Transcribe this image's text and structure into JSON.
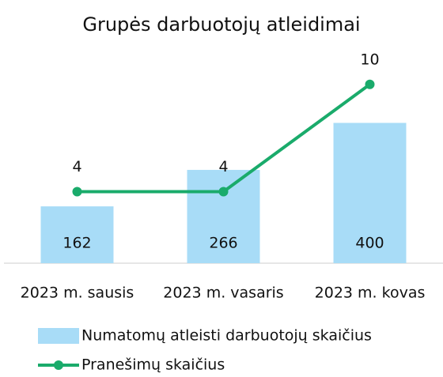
{
  "chart_data": {
    "type": "bar_line",
    "title": "Grupės darbuotojų atleidimai",
    "categories": [
      "2023 m. sausis",
      "2023 m. vasaris",
      "2023 m. kovas"
    ],
    "series": [
      {
        "name": "Numatomų atleisti darbuotojų skaičius",
        "type": "bar",
        "color": "#a8dcf7",
        "values": [
          162,
          266,
          400
        ]
      },
      {
        "name": "Pranešimų skaičius",
        "type": "line",
        "color": "#1aab6b",
        "axis": "y2",
        "values": [
          4,
          4,
          10
        ]
      }
    ],
    "ylim": [
      0,
      525
    ],
    "y2lim": [
      0,
      10.3
    ],
    "legend": "bottom"
  }
}
